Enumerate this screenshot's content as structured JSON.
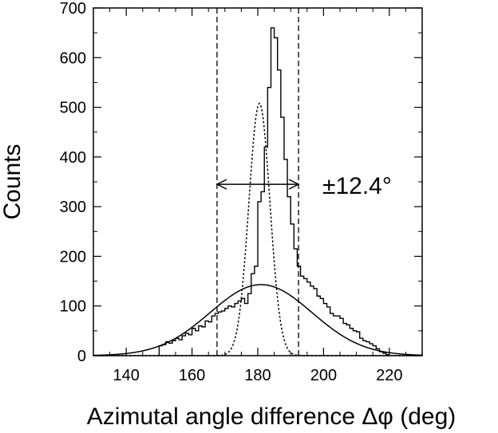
{
  "chart_data": {
    "type": "histogram",
    "xlabel": "Azimutal angle difference Δφ (deg)",
    "ylabel": "Counts",
    "xlim": [
      130,
      230
    ],
    "ylim": [
      0,
      700
    ],
    "x_ticks": [
      "140",
      "160",
      "180",
      "200",
      "220"
    ],
    "y_ticks": [
      "0",
      "100",
      "200",
      "300",
      "400",
      "500",
      "600",
      "700"
    ],
    "annotation": "±12.4°",
    "marker_lines_x": [
      167.6,
      192.4
    ],
    "arrow": {
      "x_from": 167.6,
      "x_to": 192.4,
      "y": 345
    },
    "histogram": {
      "bin_width": 1,
      "bin_start": 150,
      "counts": [
        20,
        22,
        28,
        25,
        30,
        35,
        32,
        40,
        45,
        42,
        55,
        50,
        60,
        58,
        70,
        68,
        80,
        85,
        88,
        90,
        95,
        100,
        98,
        105,
        110,
        115,
        105,
        125,
        165,
        180,
        310,
        330,
        420,
        540,
        660,
        640,
        575,
        480,
        395,
        320,
        265,
        215,
        180,
        160,
        155,
        148,
        140,
        135,
        120,
        115,
        105,
        98,
        85,
        80,
        80,
        75,
        65,
        62,
        55,
        50,
        48,
        35,
        30,
        28,
        24,
        20,
        14,
        8,
        5,
        2
      ]
    },
    "series": [
      {
        "name": "",
        "kind": "gaussian",
        "style": "dotted",
        "amplitude": 508,
        "mean": 180.5,
        "sigma": 3.2
      },
      {
        "name": "",
        "kind": "gaussian",
        "style": "solid",
        "amplitude": 143,
        "mean": 181,
        "sigma": 15.5
      }
    ],
    "grid": false,
    "legend": "none"
  }
}
